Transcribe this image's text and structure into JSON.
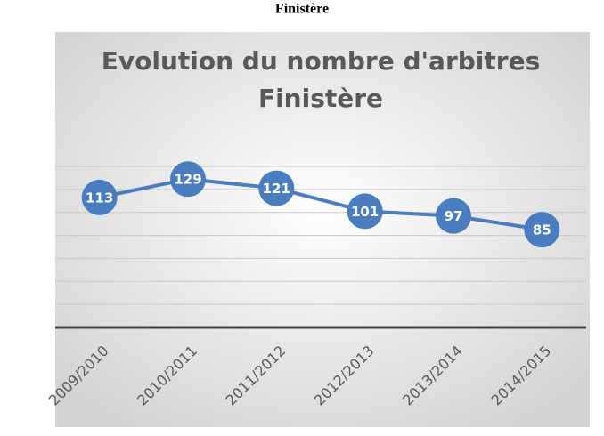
{
  "heading": "Finistère",
  "chart_data": {
    "type": "line",
    "title": [
      "Evolution du nombre d'arbitres",
      "Finistère"
    ],
    "categories": [
      "2009/2010",
      "2010/2011",
      "2011/2012",
      "2012/2013",
      "2013/2014",
      "2014/2015"
    ],
    "series": [
      {
        "name": "Finistère",
        "color": "#4a7dc0",
        "values": [
          113,
          129,
          121,
          101,
          97,
          85
        ]
      }
    ],
    "ylim": [
      0,
      140
    ],
    "yticks": [
      0,
      20,
      40,
      60,
      80,
      100,
      120,
      140
    ],
    "grid": true,
    "legend": false
  }
}
